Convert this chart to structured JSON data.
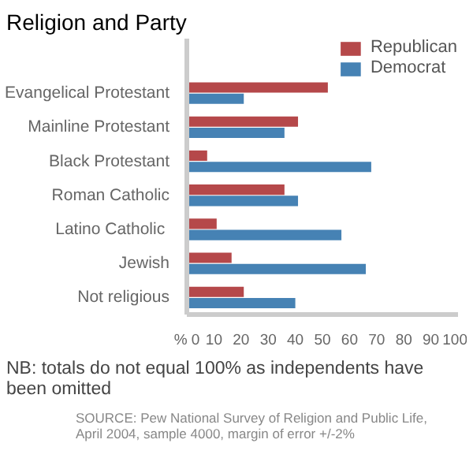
{
  "chart_data": {
    "type": "bar",
    "orientation": "horizontal",
    "title": "Religion and Party",
    "categories": [
      "Evangelical Protestant",
      "Mainline Protestant",
      "Black Protestant",
      "Roman Catholic",
      "Latino  Catholic",
      "Jewish",
      "Not religious"
    ],
    "series": [
      {
        "name": "Republican",
        "color": "#b5484a",
        "values": [
          52,
          41,
          7.5,
          36,
          11,
          16.5,
          21
        ]
      },
      {
        "name": "Democrat",
        "color": "#4682b4",
        "values": [
          21,
          36,
          68,
          41,
          57,
          66,
          40
        ]
      }
    ],
    "xlim": [
      0,
      100
    ],
    "xticks": [
      {
        "value": 0,
        "label": "% 0"
      },
      10,
      20,
      30,
      40,
      50,
      60,
      70,
      80,
      90,
      100
    ],
    "grid": false,
    "legend": "top right",
    "annotations": [
      "NB: totals do not equal 100% as independents have been omitted",
      "SOURCE: Pew National Survey of Religion and Public Life, April 2004, sample 4000, margin of error +/-2%"
    ]
  }
}
